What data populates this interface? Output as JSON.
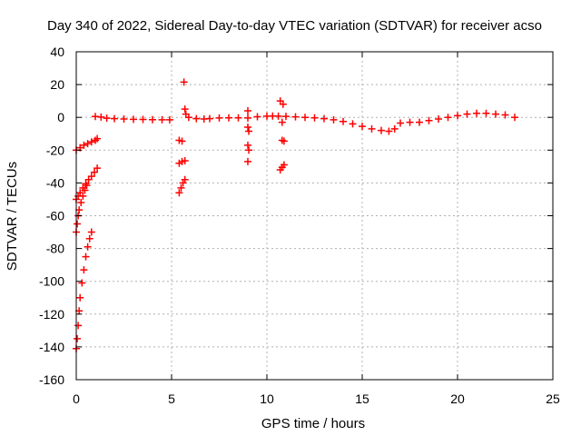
{
  "chart_data": {
    "type": "scatter",
    "title": "Day 340 of 2022, Sidereal Day-to-day VTEC variation (SDTVAR) for receiver acso",
    "xlabel": "GPS time / hours",
    "ylabel": "SDTVAR / TECUs",
    "xlim": [
      0,
      25
    ],
    "ylim": [
      -160,
      40
    ],
    "xticks": [
      "0",
      "5",
      "10",
      "15",
      "20",
      "25"
    ],
    "yticks": [
      "-160",
      "-140",
      "-120",
      "-100",
      "-80",
      "-60",
      "-40",
      "-20",
      "0",
      "20",
      "40"
    ],
    "grid": true,
    "marker": "plus",
    "color": "#ff0000",
    "series": [
      {
        "name": "main-band",
        "points": [
          [
            1.0,
            0.5
          ],
          [
            1.3,
            0.2
          ],
          [
            1.6,
            -0.5
          ],
          [
            2.0,
            -0.8
          ],
          [
            2.5,
            -1.0
          ],
          [
            3.0,
            -1.2
          ],
          [
            3.5,
            -1.3
          ],
          [
            4.0,
            -1.4
          ],
          [
            4.5,
            -1.5
          ],
          [
            4.9,
            -1.5
          ],
          [
            5.9,
            0.0
          ],
          [
            6.3,
            -0.8
          ],
          [
            6.7,
            -1.0
          ],
          [
            7.0,
            -0.8
          ],
          [
            7.5,
            -0.4
          ],
          [
            8.0,
            -0.3
          ],
          [
            8.5,
            -0.3
          ],
          [
            9.0,
            -0.4
          ],
          [
            9.5,
            0.4
          ],
          [
            10.0,
            0.7
          ],
          [
            10.3,
            0.8
          ],
          [
            10.6,
            0.7
          ],
          [
            11.0,
            0.6
          ],
          [
            11.5,
            0.3
          ],
          [
            12.0,
            0.0
          ],
          [
            12.5,
            -0.3
          ],
          [
            13.0,
            -0.8
          ],
          [
            13.5,
            -1.5
          ],
          [
            14.0,
            -2.5
          ],
          [
            14.5,
            -4.0
          ],
          [
            15.0,
            -5.5
          ],
          [
            15.5,
            -7.0
          ],
          [
            16.0,
            -8.0
          ],
          [
            16.4,
            -8.5
          ],
          [
            16.7,
            -7.0
          ],
          [
            17.0,
            -3.5
          ],
          [
            17.5,
            -3.0
          ],
          [
            18.0,
            -3.0
          ],
          [
            18.5,
            -2.0
          ],
          [
            19.0,
            -1.0
          ],
          [
            19.5,
            0.0
          ],
          [
            20.0,
            1.0
          ],
          [
            20.5,
            2.0
          ],
          [
            21.0,
            2.5
          ],
          [
            21.5,
            2.5
          ],
          [
            22.0,
            2.0
          ],
          [
            22.5,
            1.5
          ],
          [
            23.0,
            0.0
          ]
        ]
      },
      {
        "name": "early-arcs",
        "points": [
          [
            0.0,
            -20.0
          ],
          [
            0.2,
            -18.5
          ],
          [
            0.4,
            -17.0
          ],
          [
            0.6,
            -16.0
          ],
          [
            0.8,
            -15.0
          ],
          [
            1.0,
            -14.0
          ],
          [
            1.1,
            -13.0
          ],
          [
            0.0,
            -50.0
          ],
          [
            0.1,
            -48.0
          ],
          [
            0.2,
            -46.0
          ],
          [
            0.35,
            -43.0
          ],
          [
            0.5,
            -40.5
          ],
          [
            0.65,
            -38.0
          ],
          [
            0.8,
            -36.0
          ],
          [
            0.95,
            -33.5
          ],
          [
            1.1,
            -31.0
          ],
          [
            0.0,
            -70.0
          ],
          [
            0.05,
            -65.0
          ],
          [
            0.1,
            -60.0
          ],
          [
            0.15,
            -56.5
          ],
          [
            0.25,
            -52.0
          ],
          [
            0.35,
            -48.0
          ],
          [
            0.45,
            -44.5
          ],
          [
            0.55,
            -41.5
          ],
          [
            0.0,
            -141.0
          ],
          [
            0.05,
            -135.0
          ],
          [
            0.1,
            -127.0
          ],
          [
            0.15,
            -118.0
          ],
          [
            0.2,
            -110.0
          ],
          [
            0.3,
            -101.0
          ],
          [
            0.4,
            -93.0
          ],
          [
            0.5,
            -85.0
          ],
          [
            0.6,
            -79.0
          ],
          [
            0.7,
            -74.0
          ],
          [
            0.8,
            -70.0
          ]
        ]
      },
      {
        "name": "isolated-segments",
        "points": [
          [
            5.4,
            -14.0
          ],
          [
            5.55,
            -14.5
          ],
          [
            5.4,
            -28.0
          ],
          [
            5.55,
            -27.0
          ],
          [
            5.7,
            -26.5
          ],
          [
            5.4,
            -46.0
          ],
          [
            5.5,
            -43.0
          ],
          [
            5.6,
            -40.0
          ],
          [
            5.7,
            -38.0
          ],
          [
            5.65,
            21.5
          ],
          [
            5.7,
            5.0
          ],
          [
            5.75,
            2.0
          ],
          [
            9.0,
            4.0
          ],
          [
            9.0,
            -6.0
          ],
          [
            9.05,
            -8.5
          ],
          [
            9.0,
            -17.0
          ],
          [
            9.05,
            -20.0
          ],
          [
            9.0,
            -27.0
          ],
          [
            10.7,
            10.0
          ],
          [
            10.85,
            8.0
          ],
          [
            10.8,
            -14.0
          ],
          [
            10.9,
            -14.5
          ],
          [
            10.7,
            -32.0
          ],
          [
            10.8,
            -30.5
          ],
          [
            10.9,
            -29.0
          ],
          [
            10.8,
            -3.0
          ]
        ]
      }
    ]
  }
}
